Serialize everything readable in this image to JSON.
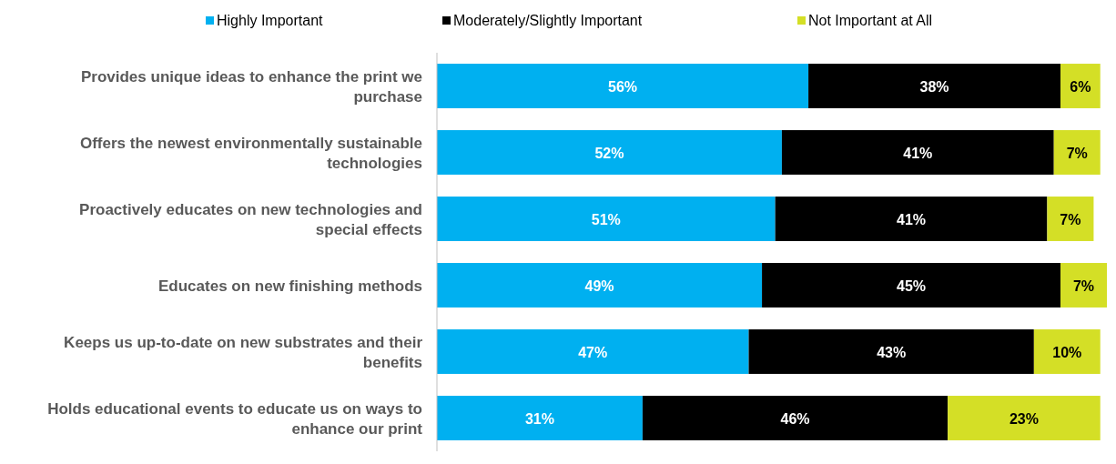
{
  "chart_data": {
    "type": "bar",
    "orientation": "horizontal",
    "stacked": true,
    "legend": "top",
    "categories": [
      "Provides unique ideas to enhance the print we purchase",
      "Offers the newest environmentally sustainable technologies",
      "Proactively educates on new technologies and special effects",
      "Educates on new finishing methods",
      "Keeps us up-to-date on new substrates and their benefits",
      "Holds educational events to educate us on ways to enhance our print"
    ],
    "series": [
      {
        "name": "Highly Important",
        "color": "#00b0f0",
        "values": [
          56,
          52,
          51,
          49,
          47,
          31
        ],
        "value_labels": [
          "56%",
          "52%",
          "51%",
          "49%",
          "47%",
          "31%"
        ]
      },
      {
        "name": "Moderately/Slightly Important",
        "color": "#000000",
        "values": [
          38,
          41,
          41,
          45,
          43,
          46
        ],
        "value_labels": [
          "38%",
          "41%",
          "41%",
          "45%",
          "43%",
          "46%"
        ]
      },
      {
        "name": "Not Important at All",
        "color": "#d4df26",
        "values": [
          6,
          7,
          7,
          7,
          10,
          23
        ],
        "value_labels": [
          "6%",
          "7%",
          "7%",
          "7%",
          "10%",
          "23%"
        ]
      }
    ]
  }
}
